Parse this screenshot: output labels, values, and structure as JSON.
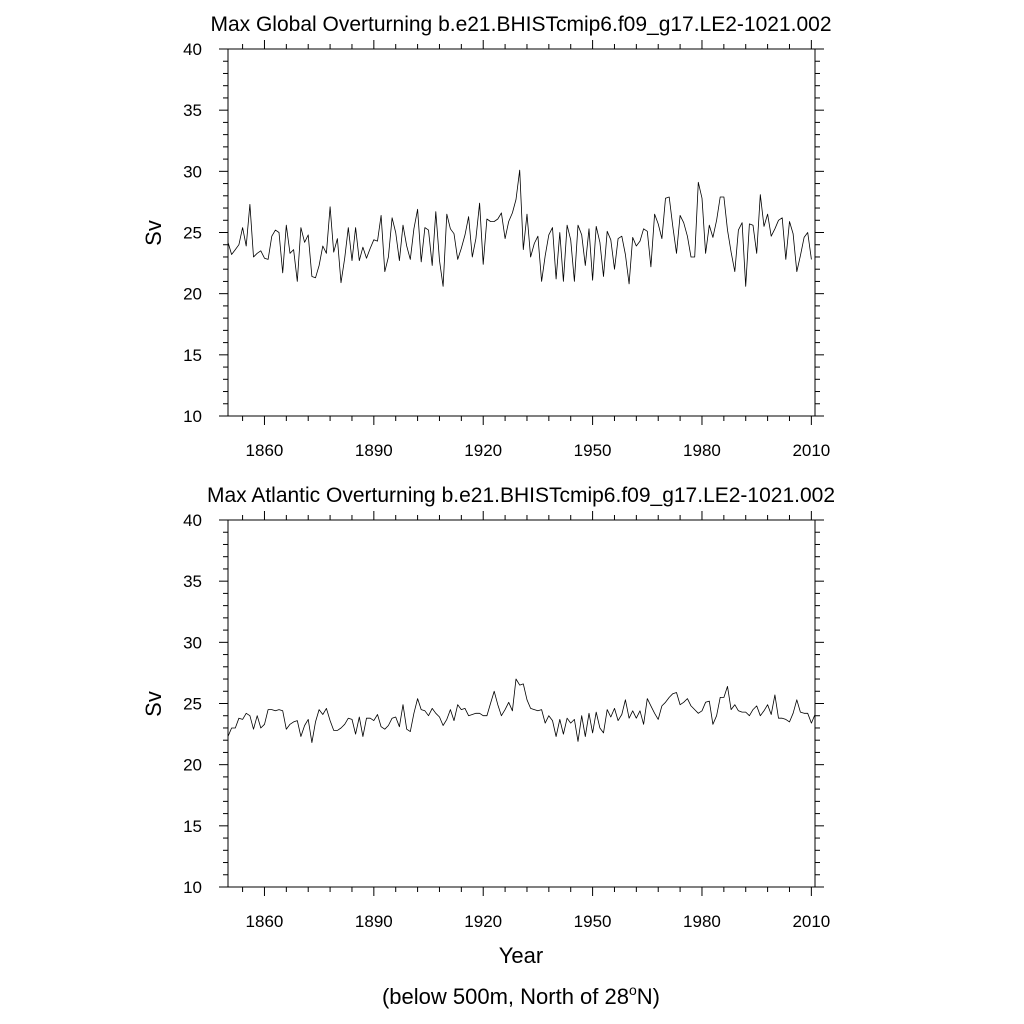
{
  "chart_data": [
    {
      "type": "line",
      "title": "Max Global Overturning b.e21.BHISTcmip6.f09_g17.LE2-1021.002",
      "xlabel": "",
      "ylabel": "Sv",
      "xlim": [
        1850,
        2011
      ],
      "ylim": [
        10,
        40
      ],
      "xticks": [
        1860,
        1890,
        1920,
        1950,
        1980,
        2010
      ],
      "yticks": [
        10,
        15,
        20,
        25,
        30,
        35,
        40
      ],
      "grid": false,
      "x_start": 1850,
      "x_step": 1,
      "series": [
        {
          "name": "Max Global Overturning",
          "values": [
            24.2,
            23.2,
            23.6,
            24.0,
            25.4,
            23.9,
            27.3,
            23.0,
            23.3,
            23.5,
            22.9,
            22.8,
            24.7,
            25.2,
            25.0,
            21.7,
            25.6,
            23.3,
            23.6,
            21.0,
            25.4,
            24.2,
            24.8,
            21.4,
            21.3,
            22.3,
            23.9,
            23.3,
            27.1,
            23.4,
            24.5,
            20.9,
            22.9,
            25.4,
            22.7,
            25.4,
            22.7,
            23.8,
            22.9,
            23.7,
            24.4,
            24.3,
            26.4,
            21.8,
            23.0,
            26.2,
            25.0,
            22.7,
            25.6,
            23.9,
            22.8,
            25.3,
            26.9,
            22.6,
            25.4,
            25.2,
            22.3,
            26.7,
            22.7,
            20.6,
            26.5,
            25.3,
            24.9,
            22.8,
            23.7,
            24.8,
            26.3,
            23.0,
            24.5,
            27.4,
            22.4,
            26.1,
            25.9,
            25.9,
            26.1,
            26.6,
            24.5,
            25.9,
            26.6,
            27.7,
            30.1,
            23.6,
            26.5,
            23.0,
            24.1,
            24.7,
            21.0,
            23.1,
            24.8,
            25.4,
            21.2,
            25.0,
            21.0,
            25.6,
            24.4,
            21.0,
            25.6,
            24.8,
            22.3,
            25.3,
            21.1,
            25.5,
            24.2,
            21.4,
            25.1,
            24.4,
            22.0,
            24.5,
            24.7,
            23.2,
            20.8,
            24.6,
            23.9,
            24.3,
            25.3,
            25.1,
            22.2,
            26.5,
            25.7,
            24.5,
            27.8,
            27.9,
            25.5,
            23.3,
            26.4,
            25.8,
            24.7,
            23.0,
            23.0,
            29.1,
            27.8,
            23.3,
            25.6,
            24.6,
            26.0,
            27.9,
            27.9,
            25.2,
            23.4,
            21.8,
            25.2,
            25.8,
            20.6,
            25.7,
            25.6,
            23.3,
            28.1,
            25.5,
            26.5,
            24.7,
            25.3,
            26.0,
            26.2,
            22.8,
            25.9,
            24.9,
            21.8,
            23.1,
            24.6,
            25.0,
            22.8
          ]
        }
      ]
    },
    {
      "type": "line",
      "title": "Max Atlantic Overturning b.e21.BHISTcmip6.f09_g17.LE2-1021.002",
      "xlabel": "Year",
      "ylabel": "Sv",
      "xlim": [
        1850,
        2011
      ],
      "ylim": [
        10,
        40
      ],
      "xticks": [
        1860,
        1890,
        1920,
        1950,
        1980,
        2010
      ],
      "yticks": [
        10,
        15,
        20,
        25,
        30,
        35,
        40
      ],
      "grid": false,
      "x_start": 1850,
      "x_step": 1,
      "series": [
        {
          "name": "Max Atlantic Overturning",
          "values": [
            22.3,
            23.0,
            23.0,
            23.8,
            23.7,
            24.2,
            24.0,
            22.9,
            24.0,
            23.0,
            23.3,
            24.5,
            24.5,
            24.4,
            24.5,
            24.4,
            22.9,
            23.3,
            23.5,
            23.6,
            22.3,
            23.2,
            23.7,
            21.8,
            23.5,
            24.5,
            24.1,
            24.6,
            23.6,
            22.8,
            22.8,
            23.0,
            23.3,
            23.8,
            23.7,
            22.5,
            23.9,
            22.3,
            23.8,
            23.8,
            23.6,
            24.1,
            23.1,
            22.9,
            23.2,
            23.8,
            23.9,
            23.1,
            24.9,
            22.9,
            22.7,
            24.2,
            25.4,
            24.5,
            24.4,
            24.0,
            24.6,
            24.2,
            23.9,
            23.2,
            23.7,
            24.5,
            23.6,
            24.9,
            24.5,
            24.6,
            24.0,
            24.1,
            24.2,
            24.2,
            24.0,
            24.0,
            25.0,
            26.0,
            24.9,
            24.0,
            24.5,
            25.1,
            24.4,
            27.0,
            26.5,
            26.6,
            25.3,
            24.6,
            24.5,
            24.4,
            24.5,
            23.4,
            24.0,
            23.6,
            22.3,
            23.7,
            22.5,
            23.8,
            23.4,
            23.7,
            21.9,
            24.0,
            22.3,
            24.2,
            22.6,
            24.3,
            23.0,
            22.6,
            24.5,
            23.9,
            24.6,
            23.6,
            24.1,
            25.3,
            23.8,
            24.4,
            23.8,
            24.4,
            23.3,
            25.4,
            24.8,
            24.2,
            23.7,
            24.8,
            25.1,
            25.5,
            25.8,
            25.9,
            24.9,
            25.1,
            25.4,
            24.8,
            24.5,
            24.2,
            24.4,
            25.1,
            25.2,
            23.3,
            24.0,
            25.5,
            25.5,
            26.4,
            24.5,
            24.9,
            24.4,
            24.3,
            24.3,
            24.0,
            24.5,
            24.8,
            24.0,
            24.4,
            24.9,
            24.1,
            25.7,
            23.8,
            23.8,
            23.7,
            23.5,
            24.2,
            25.3,
            24.3,
            24.2,
            24.2,
            23.4,
            24.1
          ]
        }
      ]
    }
  ],
  "footnote": {
    "prefix": "(below 500m, North of 28",
    "superscript": "o",
    "suffix": "N)"
  }
}
